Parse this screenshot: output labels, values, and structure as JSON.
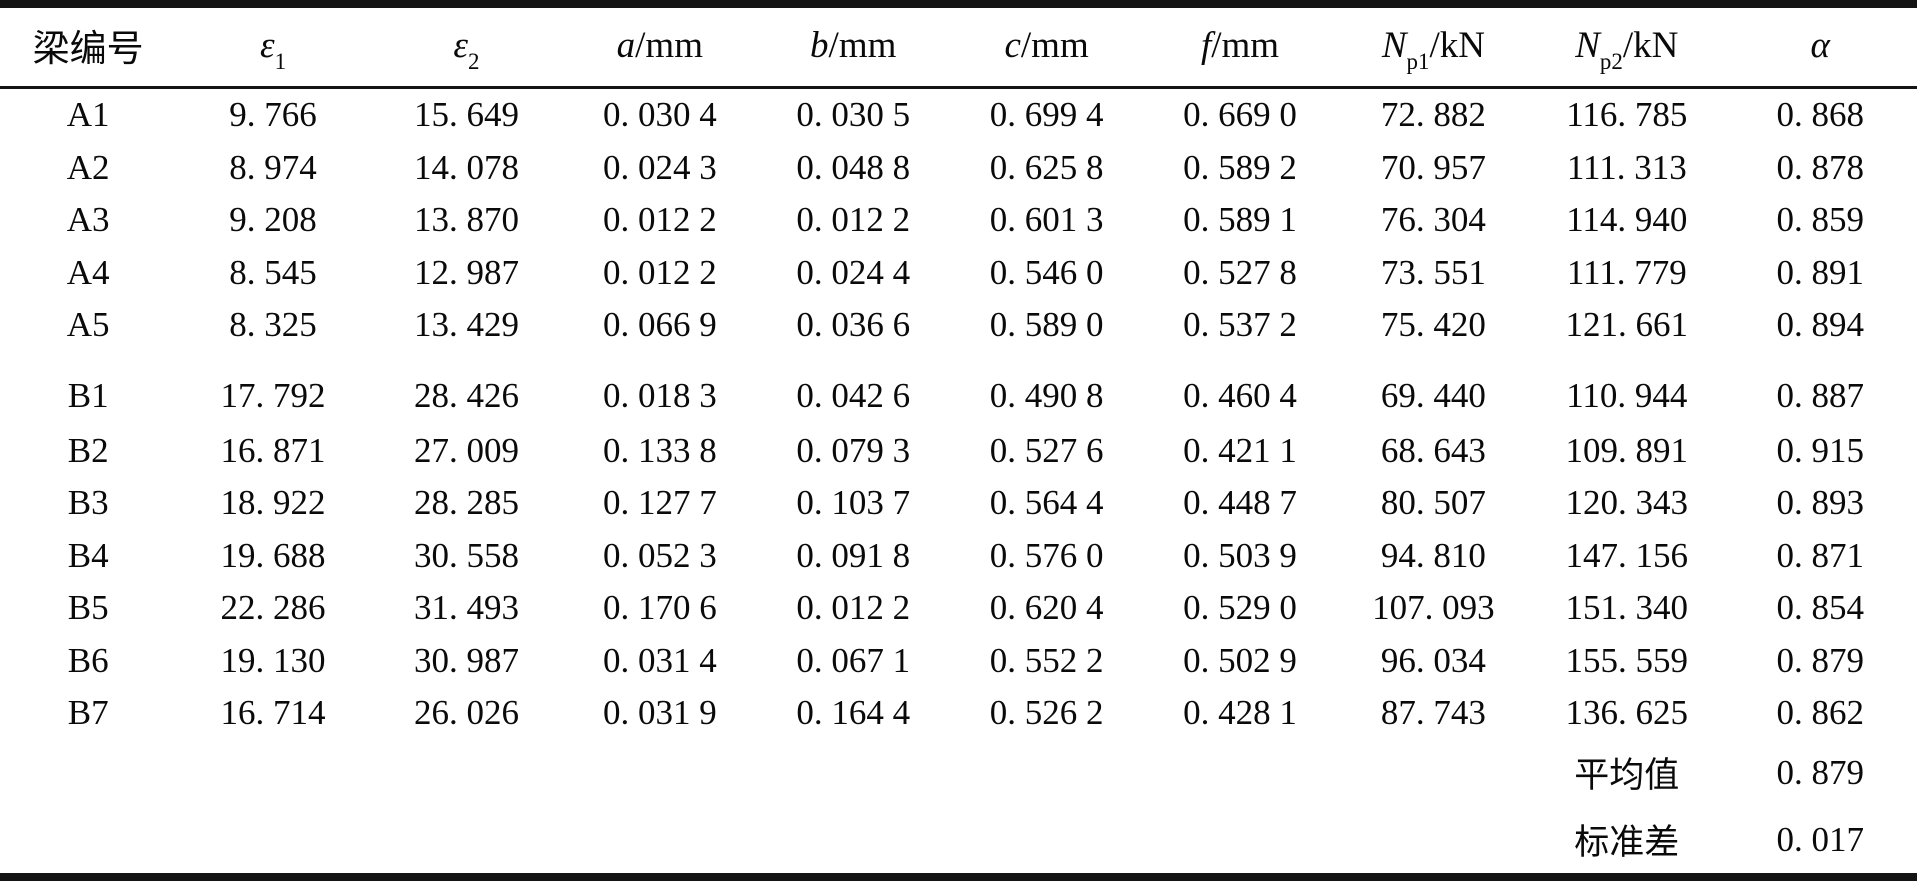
{
  "table": {
    "columns": [
      {
        "text": "梁编号"
      },
      {
        "var": "ε",
        "sub": "1"
      },
      {
        "var": "ε",
        "sub": "2"
      },
      {
        "var": "a",
        "post": "/mm"
      },
      {
        "var": "b",
        "post": "/mm"
      },
      {
        "var": "c",
        "post": "/mm"
      },
      {
        "var": "f",
        "post": "/mm"
      },
      {
        "var": "N",
        "sub": "p1",
        "post": "/kN"
      },
      {
        "var": "N",
        "sub": "p2",
        "post": "/kN"
      },
      {
        "var": "α"
      }
    ],
    "rows": [
      {
        "cells": [
          "A1",
          "9. 766",
          "15. 649",
          "0. 030 4",
          "0. 030 5",
          "0. 699 4",
          "0. 669 0",
          "72. 882",
          "116. 785",
          "0. 868"
        ]
      },
      {
        "cells": [
          "A2",
          "8. 974",
          "14. 078",
          "0. 024 3",
          "0. 048 8",
          "0. 625 8",
          "0. 589 2",
          "70. 957",
          "111. 313",
          "0. 878"
        ]
      },
      {
        "cells": [
          "A3",
          "9. 208",
          "13. 870",
          "0. 012 2",
          "0. 012 2",
          "0. 601 3",
          "0. 589 1",
          "76. 304",
          "114. 940",
          "0. 859"
        ]
      },
      {
        "cells": [
          "A4",
          "8. 545",
          "12. 987",
          "0. 012 2",
          "0. 024 4",
          "0. 546 0",
          "0. 527 8",
          "73. 551",
          "111. 779",
          "0. 891"
        ]
      },
      {
        "cells": [
          "A5",
          "8. 325",
          "13. 429",
          "0. 066 9",
          "0. 036 6",
          "0. 589 0",
          "0. 537 2",
          "75. 420",
          "121. 661",
          "0. 894"
        ]
      },
      {
        "cells": [
          "B1",
          "17. 792",
          "28. 426",
          "0. 018 3",
          "0. 042 6",
          "0. 490 8",
          "0. 460 4",
          "69. 440",
          "110. 944",
          "0. 887"
        ],
        "gap_before": true
      },
      {
        "cells": [
          "B2",
          "16. 871",
          "27. 009",
          "0. 133 8",
          "0. 079 3",
          "0. 527 6",
          "0. 421 1",
          "68. 643",
          "109. 891",
          "0. 915"
        ]
      },
      {
        "cells": [
          "B3",
          "18. 922",
          "28. 285",
          "0. 127 7",
          "0. 103 7",
          "0. 564 4",
          "0. 448 7",
          "80. 507",
          "120. 343",
          "0. 893"
        ]
      },
      {
        "cells": [
          "B4",
          "19. 688",
          "30. 558",
          "0. 052 3",
          "0. 091 8",
          "0. 576 0",
          "0. 503 9",
          "94. 810",
          "147. 156",
          "0. 871"
        ]
      },
      {
        "cells": [
          "B5",
          "22. 286",
          "31. 493",
          "0. 170 6",
          "0. 012 2",
          "0. 620 4",
          "0. 529 0",
          "107. 093",
          "151. 340",
          "0. 854"
        ]
      },
      {
        "cells": [
          "B6",
          "19. 130",
          "30. 987",
          "0. 031 4",
          "0. 067 1",
          "0. 552 2",
          "0. 502 9",
          "96. 034",
          "155. 559",
          "0. 879"
        ]
      },
      {
        "cells": [
          "B7",
          "16. 714",
          "26. 026",
          "0. 031 9",
          "0. 164 4",
          "0. 526 2",
          "0. 428 1",
          "87. 743",
          "136. 625",
          "0. 862"
        ]
      },
      {
        "cells": [
          "",
          "",
          "",
          "",
          "",
          "",
          "",
          "",
          "平均值",
          "0. 879"
        ],
        "summary": true
      },
      {
        "cells": [
          "",
          "",
          "",
          "",
          "",
          "",
          "",
          "",
          "标准差",
          "0. 017"
        ],
        "summary": true
      }
    ]
  }
}
